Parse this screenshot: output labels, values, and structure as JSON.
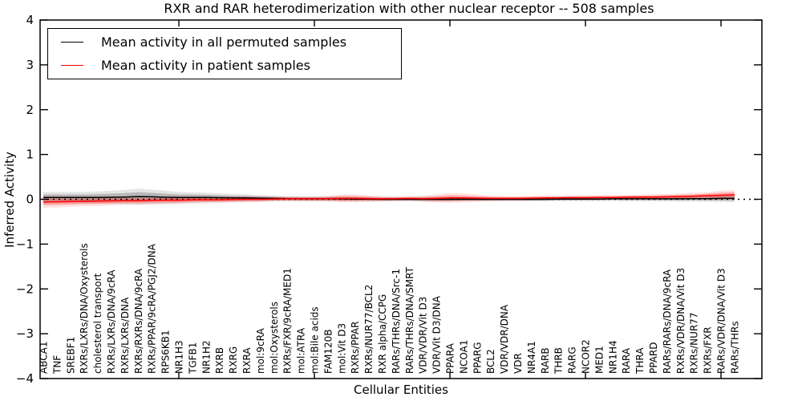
{
  "chart_data": {
    "type": "line",
    "title": "RXR and RAR heterodimerization with other nuclear receptor -- 508 samples",
    "xlabel": "Cellular Entities",
    "ylabel": "Inferred Activity",
    "ylim": [
      -4,
      4
    ],
    "ytick_labels": [
      "4",
      "3",
      "2",
      "1",
      "0",
      "−1",
      "−2",
      "−3",
      "−4"
    ],
    "ytick_values": [
      4,
      3,
      2,
      1,
      0,
      -1,
      -2,
      -3,
      -4
    ],
    "xtick_major_indices": [
      10,
      20,
      30,
      40,
      50
    ],
    "grid": false,
    "legend_position": "upper left",
    "zero_line": {
      "value": 0,
      "style": "dotted",
      "color": "#000000"
    },
    "categories": [
      "ABCA1",
      "TNF",
      "SREBF1",
      "RXRs/LXRs/DNA/Oxysterols",
      "cholesterol transport",
      "RXRs/LXRs/DNA/9cRA",
      "RXRs/LXRs/DNA",
      "RXRs/RXRs/DNA/9cRA",
      "RXRs/PPAR/9cRA/PGJ2/DNA",
      "RPS6KB1",
      "NR1H3",
      "TGFB1",
      "NR1H2",
      "RXRB",
      "RXRG",
      "RXRA",
      "mol:9cRA",
      "mol:Oxysterols",
      "RXRs/FXR/9cRA/MED1",
      "mol:ATRA",
      "mol:Bile acids",
      "FAM120B",
      "mol:Vit D3",
      "RXRs/PPAR",
      "RXRs/NUR77/BCL2",
      "RXR alpha/CCPG",
      "RARs/THRs/DNA/Src-1",
      "RARs/THRs/DNA/SMRT",
      "VDR/VDR/Vit D3",
      "VDR/Vit D3/DNA",
      "PPARA",
      "NCOA1",
      "PPARG",
      "BCL2",
      "VDR/VDR/DNA",
      "VDR",
      "NR4A1",
      "RARB",
      "THRB",
      "RARG",
      "NCOR2",
      "MED1",
      "NR1H4",
      "RARA",
      "THRA",
      "PPARD",
      "RARs/RARs/DNA/9cRA",
      "RXRs/VDR/DNA/Vit D3",
      "RXRs/NUR77",
      "RXRs/FXR",
      "RARs/VDR/DNA/Vit D3",
      "RARs/THRs"
    ],
    "series": [
      {
        "name": "Mean activity in all permuted samples",
        "color": "#000000",
        "band_color": "#000000",
        "values": [
          0.04,
          0.04,
          0.04,
          0.04,
          0.04,
          0.045,
          0.05,
          0.06,
          0.055,
          0.045,
          0.04,
          0.04,
          0.04,
          0.035,
          0.03,
          0.03,
          0.025,
          0.02,
          0.015,
          0.01,
          0.01,
          0.01,
          0.01,
          0.005,
          0.005,
          0.0,
          0.0,
          0.0,
          0.0,
          0.0,
          0.0,
          0.0,
          0.0,
          0.0,
          0.0,
          0.0,
          0.0,
          0.0,
          0.005,
          0.005,
          0.005,
          0.005,
          0.01,
          0.01,
          0.01,
          0.01,
          0.01,
          0.01,
          0.015,
          0.015,
          0.02,
          0.02
        ],
        "band_spread": [
          0.07,
          0.07,
          0.07,
          0.07,
          0.075,
          0.08,
          0.09,
          0.1,
          0.09,
          0.08,
          0.07,
          0.065,
          0.06,
          0.055,
          0.05,
          0.045,
          0.04,
          0.035,
          0.03,
          0.03,
          0.03,
          0.03,
          0.03,
          0.03,
          0.03,
          0.025,
          0.025,
          0.025,
          0.03,
          0.03,
          0.03,
          0.025,
          0.025,
          0.025,
          0.025,
          0.025,
          0.025,
          0.025,
          0.025,
          0.025,
          0.025,
          0.025,
          0.025,
          0.03,
          0.03,
          0.03,
          0.03,
          0.035,
          0.035,
          0.04,
          0.045,
          0.05
        ]
      },
      {
        "name": "Mean activity in patient samples",
        "color": "#ff0000",
        "band_color": "#ff0000",
        "values": [
          -0.06,
          -0.055,
          -0.05,
          -0.045,
          -0.04,
          -0.035,
          -0.03,
          -0.03,
          -0.025,
          -0.02,
          -0.02,
          -0.015,
          -0.01,
          -0.01,
          -0.005,
          0.0,
          0.0,
          0.005,
          0.01,
          0.01,
          0.01,
          0.015,
          0.02,
          0.02,
          0.015,
          0.01,
          0.015,
          0.02,
          0.015,
          0.02,
          0.03,
          0.03,
          0.025,
          0.02,
          0.02,
          0.02,
          0.025,
          0.03,
          0.03,
          0.035,
          0.035,
          0.04,
          0.04,
          0.045,
          0.05,
          0.05,
          0.055,
          0.06,
          0.07,
          0.08,
          0.09,
          0.1
        ],
        "band_spread": [
          0.07,
          0.07,
          0.065,
          0.06,
          0.06,
          0.055,
          0.05,
          0.05,
          0.05,
          0.05,
          0.05,
          0.045,
          0.045,
          0.04,
          0.04,
          0.04,
          0.035,
          0.03,
          0.03,
          0.03,
          0.03,
          0.035,
          0.05,
          0.05,
          0.04,
          0.035,
          0.03,
          0.03,
          0.035,
          0.05,
          0.06,
          0.055,
          0.045,
          0.035,
          0.03,
          0.03,
          0.03,
          0.03,
          0.03,
          0.03,
          0.03,
          0.03,
          0.03,
          0.03,
          0.03,
          0.035,
          0.035,
          0.04,
          0.04,
          0.045,
          0.055,
          0.06
        ]
      }
    ]
  }
}
